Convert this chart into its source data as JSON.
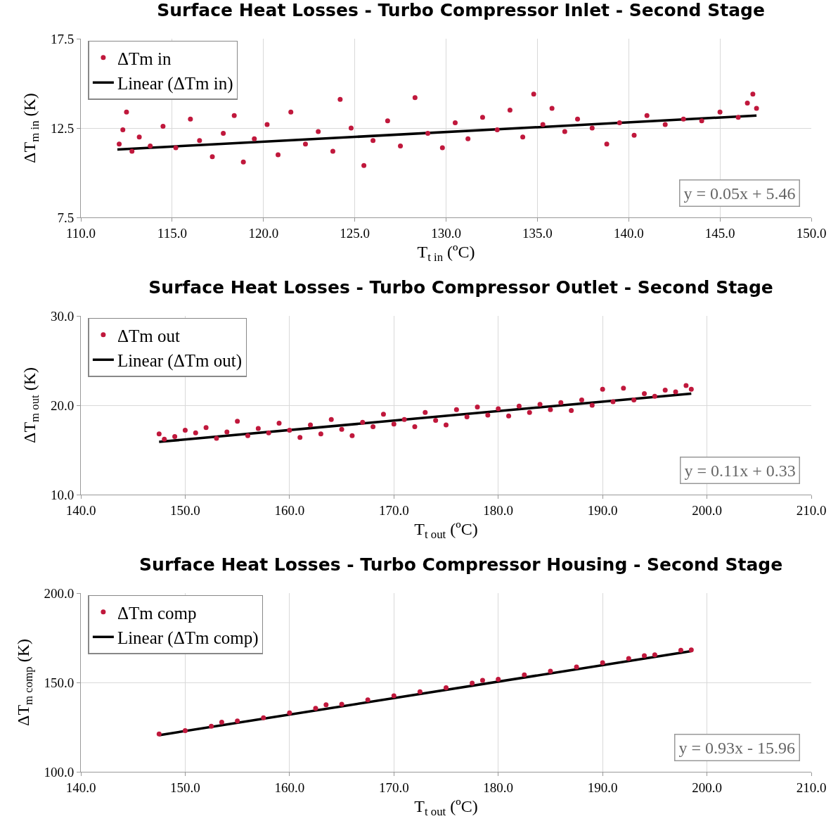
{
  "chart_data": [
    {
      "type": "scatter",
      "title": "Surface Heat Losses - Turbo Compressor Inlet - Second Stage",
      "xlabel": "T$_{t in}$ (ºC)",
      "ylabel": "ΔT$_{m in}$ (K)",
      "legend": "top left",
      "grid": true,
      "annotations": [
        "y = 0.05x + 5.46"
      ],
      "xlim": [
        110,
        150
      ],
      "xticks": [
        {
          "value": 110,
          "label": "110.0"
        },
        {
          "value": 115,
          "label": "115.0"
        },
        {
          "value": 120,
          "label": "120.0"
        },
        {
          "value": 125,
          "label": "125.0"
        },
        {
          "value": 130,
          "label": "130.0"
        },
        {
          "value": 135,
          "label": "135.0"
        },
        {
          "value": 140,
          "label": "140.0"
        },
        {
          "value": 145,
          "label": "145.0"
        },
        {
          "value": 150,
          "label": "150.0"
        }
      ],
      "ylim": [
        7.5,
        17.5
      ],
      "yticks": [
        7.5,
        12.5,
        17.5
      ],
      "series": [
        {
          "name": "ΔTm in",
          "color": "#c0183c",
          "marker": "circle",
          "x": [
            112.1,
            112.3,
            112.5,
            112.8,
            113.2,
            113.8,
            114.5,
            115.2,
            116,
            116.5,
            117.2,
            117.8,
            118.4,
            118.9,
            119.5,
            120.2,
            120.8,
            121.5,
            122.3,
            123,
            123.8,
            124.2,
            124.8,
            125.5,
            126,
            126.8,
            127.5,
            128.3,
            129,
            129.8,
            130.5,
            131.2,
            132,
            132.8,
            133.5,
            134.2,
            134.8,
            135.3,
            135.8,
            136.5,
            137.2,
            138,
            138.8,
            139.5,
            140.3,
            141,
            142,
            143,
            144,
            145,
            146,
            146.5,
            146.8,
            147
          ],
          "values": [
            11.6,
            12.4,
            13.4,
            11.2,
            12.0,
            11.5,
            12.6,
            11.4,
            13.0,
            11.8,
            10.9,
            12.2,
            13.2,
            10.6,
            11.9,
            12.7,
            11.0,
            13.4,
            11.6,
            12.3,
            11.2,
            14.1,
            12.5,
            10.4,
            11.8,
            12.9,
            11.5,
            14.2,
            12.2,
            11.4,
            12.8,
            11.9,
            13.1,
            12.4,
            13.5,
            12.0,
            14.4,
            12.7,
            13.6,
            12.3,
            13.0,
            12.5,
            11.6,
            12.8,
            12.1,
            13.2,
            12.7,
            13.0,
            12.9,
            13.4,
            13.1,
            13.9,
            14.4,
            13.6
          ]
        },
        {
          "type": "line",
          "name": "Linear (ΔTm in)",
          "color": "#000000",
          "line_style": "solid",
          "marker": "none",
          "x": [
            112,
            147
          ],
          "values": [
            11.3,
            13.2
          ]
        }
      ]
    },
    {
      "type": "scatter",
      "title": "Surface Heat Losses - Turbo Compressor Outlet - Second Stage",
      "xlabel": "T$_{t out}$ (ºC)",
      "ylabel": "ΔT$_{m out}$ (K)",
      "legend": "top left",
      "grid": true,
      "annotations": [
        "y = 0.11x + 0.33"
      ],
      "xlim": [
        140,
        210
      ],
      "xticks": [
        {
          "value": 140,
          "label": "140.0"
        },
        {
          "value": 150,
          "label": "150.0"
        },
        {
          "value": 160,
          "label": "160.0"
        },
        {
          "value": 170,
          "label": "170.0"
        },
        {
          "value": 180,
          "label": "180.0"
        },
        {
          "value": 190,
          "label": "190.0"
        },
        {
          "value": 200,
          "label": "200.0"
        },
        {
          "value": 210,
          "label": "210.0"
        }
      ],
      "ylim": [
        10,
        30
      ],
      "yticks": [
        {
          "value": 10,
          "label": "10.0"
        },
        {
          "value": 20,
          "label": "20.0"
        },
        {
          "value": 30,
          "label": "30.0"
        }
      ],
      "series": [
        {
          "name": "ΔTm out",
          "color": "#c0183c",
          "marker": "circle",
          "x": [
            147.5,
            148,
            149,
            150,
            151,
            152,
            153,
            154,
            155,
            156,
            157,
            158,
            159,
            160,
            161,
            162,
            163,
            164,
            165,
            166,
            167,
            168,
            169,
            170,
            171,
            172,
            173,
            174,
            175,
            176,
            177,
            178,
            179,
            180,
            181,
            182,
            183,
            184,
            185,
            186,
            187,
            188,
            189,
            190,
            191,
            192,
            193,
            194,
            195,
            196,
            197,
            198,
            198.5
          ],
          "values": [
            16.8,
            16.2,
            16.5,
            17.2,
            16.9,
            17.5,
            16.3,
            17.0,
            18.2,
            16.6,
            17.4,
            16.9,
            18.0,
            17.2,
            16.4,
            17.8,
            16.8,
            18.4,
            17.3,
            16.6,
            18.1,
            17.6,
            19.0,
            17.9,
            18.4,
            17.6,
            19.2,
            18.3,
            17.8,
            19.5,
            18.7,
            19.8,
            18.9,
            19.6,
            18.8,
            19.9,
            19.2,
            20.1,
            19.5,
            20.3,
            19.4,
            20.6,
            20.0,
            21.8,
            20.4,
            21.9,
            20.6,
            21.3,
            21.0,
            21.7,
            21.5,
            22.2,
            21.8
          ]
        },
        {
          "type": "line",
          "name": "Linear (ΔTm out)",
          "color": "#000000",
          "line_style": "solid",
          "marker": "none",
          "x": [
            147.5,
            198.5
          ],
          "values": [
            15.9,
            21.3
          ]
        }
      ]
    },
    {
      "type": "scatter",
      "title": "Surface Heat Losses - Turbo Compressor Housing - Second Stage",
      "xlabel": "T$_{t out}$ (ºC)",
      "ylabel": "ΔT$_{m comp}$ (K)",
      "legend": "top left",
      "grid": true,
      "annotations": [
        "y = 0.93x - 15.96"
      ],
      "xlim": [
        140,
        210
      ],
      "xticks": [
        {
          "value": 140,
          "label": "140.0"
        },
        {
          "value": 150,
          "label": "150.0"
        },
        {
          "value": 160,
          "label": "160.0"
        },
        {
          "value": 170,
          "label": "170.0"
        },
        {
          "value": 180,
          "label": "180.0"
        },
        {
          "value": 190,
          "label": "190.0"
        },
        {
          "value": 200,
          "label": "200.0"
        },
        {
          "value": 210,
          "label": "210.0"
        }
      ],
      "ylim": [
        100,
        200
      ],
      "yticks": [
        {
          "value": 100,
          "label": "100.0"
        },
        {
          "value": 150,
          "label": "150.0"
        },
        {
          "value": 200,
          "label": "200.0"
        }
      ],
      "series": [
        {
          "name": "ΔTm comp",
          "color": "#c0183c",
          "marker": "circle",
          "x": [
            147.5,
            150,
            152.5,
            153.5,
            155,
            157.5,
            160,
            162.5,
            163.5,
            165,
            167.5,
            170,
            172.5,
            175,
            177.5,
            178.5,
            180,
            182.5,
            185,
            187.5,
            190,
            192.5,
            194,
            195,
            197.5,
            198.5
          ],
          "values": [
            121.2,
            123.0,
            125.5,
            127.8,
            128.4,
            130.2,
            133.0,
            135.5,
            137.5,
            137.8,
            140.3,
            142.5,
            144.8,
            147.0,
            149.6,
            151.2,
            151.8,
            154.2,
            156.3,
            158.7,
            161.0,
            163.4,
            165.0,
            165.5,
            168.0,
            168.2
          ]
        },
        {
          "type": "line",
          "name": "Linear (ΔTm comp)",
          "color": "#000000",
          "line_style": "solid",
          "marker": "none",
          "x": [
            147.5,
            198.5
          ],
          "values": [
            120.5,
            167.5
          ]
        }
      ]
    }
  ]
}
